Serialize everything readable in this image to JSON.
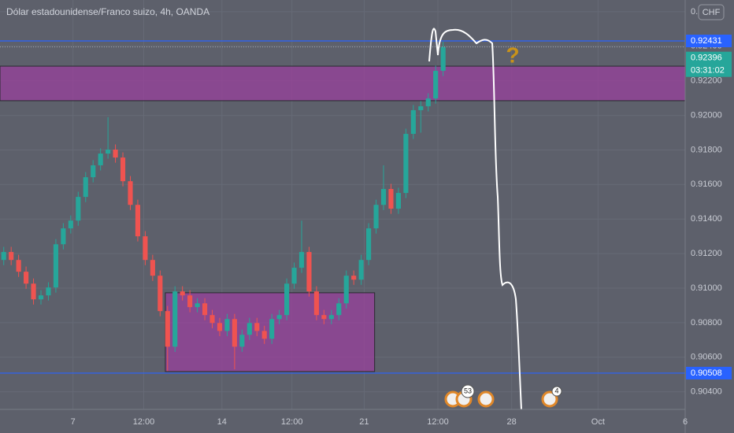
{
  "chart_data": {
    "type": "candlestick",
    "title": "Dólar estadounidense/Franco suizo, 4h, OANDA",
    "currency_button": "CHF",
    "annotation": "?",
    "countdown": "03:31:02",
    "last_price": 0.92396,
    "horizontal_lines": [
      0.92431,
      0.90508
    ],
    "line_color": "#2962ff",
    "up_color": "#26a69a",
    "down_color": "#ef5350",
    "zone_color": "#9c3fa0",
    "zones": [
      {
        "y": [
          0.92085,
          0.92285
        ],
        "x": [
          0,
          92
        ]
      },
      {
        "y": [
          0.90517,
          0.90973
        ],
        "x": [
          22.2,
          50.3
        ]
      }
    ],
    "event_badges": [
      53,
      4
    ],
    "grid": true,
    "xlim": [
      0,
      92
    ],
    "xticks": [
      {
        "value": 9.8,
        "label": "7"
      },
      {
        "value": 19.3,
        "label": "12:00"
      },
      {
        "value": 29.8,
        "label": "14"
      },
      {
        "value": 39.2,
        "label": "12:00"
      },
      {
        "value": 48.9,
        "label": "21"
      },
      {
        "value": 58.8,
        "label": "12:00"
      },
      {
        "value": 68.7,
        "label": "28"
      },
      {
        "value": 80.3,
        "label": "Oct"
      },
      {
        "value": 92,
        "label": "6"
      }
    ],
    "ylim": [
      0.90298,
      0.92668
    ],
    "yticks": [
      {
        "value": 0.904,
        "label": "0.90400"
      },
      {
        "value": 0.906,
        "label": "0.90600"
      },
      {
        "value": 0.908,
        "label": "0.90800"
      },
      {
        "value": 0.91,
        "label": "0.91000"
      },
      {
        "value": 0.912,
        "label": "0.91200"
      },
      {
        "value": 0.914,
        "label": "0.91400"
      },
      {
        "value": 0.916,
        "label": "0.91600"
      },
      {
        "value": 0.918,
        "label": "0.91800"
      },
      {
        "value": 0.92,
        "label": "0.92000"
      },
      {
        "value": 0.922,
        "label": "0.92200"
      },
      {
        "value": 0.924,
        "label": "0.92400"
      },
      {
        "value": 0.926,
        "label": "0.92600"
      }
    ],
    "candles": {
      "open": [
        0.91163,
        0.91209,
        0.91163,
        0.91095,
        0.91026,
        0.90935,
        0.90958,
        0.91004,
        0.91254,
        0.91346,
        0.91391,
        0.91528,
        0.91642,
        0.91711,
        0.91779,
        0.91802,
        0.91756,
        0.91619,
        0.91482,
        0.913,
        0.91163,
        0.91072,
        0.90867,
        0.90661,
        0.90981,
        0.90958,
        0.9089,
        0.90912,
        0.90844,
        0.90798,
        0.90752,
        0.90821,
        0.90661,
        0.9073,
        0.90798,
        0.90752,
        0.90707,
        0.90821,
        0.90844,
        0.91026,
        0.91118,
        0.91209,
        0.90981,
        0.90844,
        0.90821,
        0.90844,
        0.90912,
        0.91072,
        0.91049,
        0.91163,
        0.91346,
        0.91482,
        0.91574,
        0.9146,
        0.91551,
        0.91893,
        0.9203,
        0.92053,
        0.92098,
        0.92258
      ],
      "high": [
        0.91239,
        0.91239,
        0.91193,
        0.91125,
        0.91056,
        0.90988,
        0.91034,
        0.91284,
        0.91376,
        0.91421,
        0.91558,
        0.91672,
        0.91741,
        0.91809,
        0.9199,
        0.91832,
        0.91786,
        0.91649,
        0.91512,
        0.9133,
        0.91193,
        0.91102,
        0.90897,
        0.91011,
        0.91011,
        0.90988,
        0.90942,
        0.90942,
        0.90874,
        0.90828,
        0.90851,
        0.90851,
        0.9076,
        0.90828,
        0.90828,
        0.90782,
        0.90851,
        0.90874,
        0.91056,
        0.91148,
        0.91391,
        0.91239,
        0.91011,
        0.90874,
        0.90874,
        0.90942,
        0.91102,
        0.91102,
        0.91193,
        0.91376,
        0.91512,
        0.91711,
        0.91604,
        0.91581,
        0.91923,
        0.9206,
        0.92083,
        0.92128,
        0.92288,
        0.92426
      ],
      "low": [
        0.91133,
        0.91133,
        0.91065,
        0.90996,
        0.90905,
        0.90905,
        0.90928,
        0.90974,
        0.91224,
        0.91316,
        0.91361,
        0.91498,
        0.91612,
        0.91681,
        0.91749,
        0.91726,
        0.91589,
        0.91452,
        0.9127,
        0.91133,
        0.91042,
        0.90837,
        0.9052,
        0.90631,
        0.90928,
        0.9086,
        0.9086,
        0.90814,
        0.90768,
        0.90722,
        0.90722,
        0.9053,
        0.90631,
        0.907,
        0.90722,
        0.90677,
        0.90677,
        0.90791,
        0.90814,
        0.90996,
        0.91088,
        0.90951,
        0.90814,
        0.90791,
        0.90791,
        0.90814,
        0.90882,
        0.91019,
        0.91019,
        0.91133,
        0.91316,
        0.91452,
        0.9143,
        0.9143,
        0.91521,
        0.91863,
        0.919,
        0.92023,
        0.92068,
        0.92228
      ],
      "close": [
        0.91209,
        0.91163,
        0.91095,
        0.91026,
        0.90935,
        0.90958,
        0.91004,
        0.91254,
        0.91346,
        0.91391,
        0.91528,
        0.91642,
        0.91711,
        0.91779,
        0.91802,
        0.91756,
        0.91619,
        0.91482,
        0.913,
        0.91163,
        0.91072,
        0.90867,
        0.90661,
        0.90981,
        0.90958,
        0.9089,
        0.90912,
        0.90844,
        0.90798,
        0.90752,
        0.90821,
        0.90661,
        0.9073,
        0.90798,
        0.90752,
        0.90707,
        0.90821,
        0.90844,
        0.91026,
        0.91118,
        0.91209,
        0.90981,
        0.90844,
        0.90821,
        0.90844,
        0.90912,
        0.91072,
        0.91049,
        0.91163,
        0.91346,
        0.91482,
        0.91574,
        0.9146,
        0.91551,
        0.91893,
        0.9203,
        0.92053,
        0.92098,
        0.92258,
        0.92396
      ]
    }
  }
}
